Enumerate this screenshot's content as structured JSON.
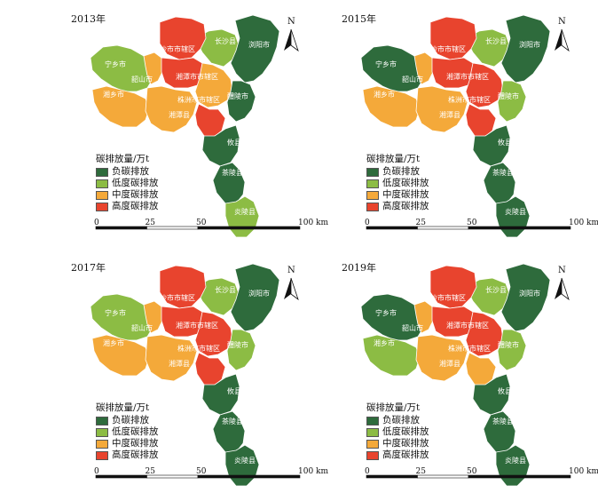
{
  "legend": {
    "title": "碳排放量/万t",
    "classes": [
      {
        "key": "neg",
        "label": "负碳排放",
        "color": "#2e6b3c"
      },
      {
        "key": "low",
        "label": "低度碳排放",
        "color": "#8cbc44"
      },
      {
        "key": "mid",
        "label": "中度碳排放",
        "color": "#f4a93a"
      },
      {
        "key": "high",
        "label": "高度碳排放",
        "color": "#e8442e"
      }
    ]
  },
  "scale": {
    "ticks": [
      "0",
      "25",
      "50",
      "100 km"
    ]
  },
  "north_label": "N",
  "region_names": {
    "changsha_xian": "长沙县",
    "liuyang": "浏阳市",
    "changsha_shi": "长沙市市辖区",
    "ningxiang": "宁乡市",
    "shaoshan": "韶山市",
    "xiangtan_shi": "湘潭市市辖区",
    "xiangxiang": "湘乡市",
    "xiangtan_xian": "湘潭县",
    "zhuzhou_shi": "株洲市市辖区",
    "liling": "醴陵市",
    "youxian": "攸县",
    "chaling": "茶陵县",
    "yanling": "炎陵县"
  },
  "panels": [
    {
      "year": "2013年",
      "classes": {
        "changsha_xian": "low",
        "liuyang": "neg",
        "changsha_shi": "high",
        "ningxiang": "low",
        "shaoshan": "mid",
        "xiangtan_shi": "high",
        "xiangxiang": "mid",
        "xiangtan_xian": "mid",
        "zhuzhou_shi": "mid",
        "liling": "neg",
        "zhuzhou_south": "high",
        "youxian": "neg",
        "chaling": "neg",
        "yanling": "low"
      }
    },
    {
      "year": "2015年",
      "classes": {
        "changsha_xian": "low",
        "liuyang": "neg",
        "changsha_shi": "high",
        "ningxiang": "neg",
        "shaoshan": "mid",
        "xiangtan_shi": "high",
        "xiangxiang": "mid",
        "xiangtan_xian": "mid",
        "zhuzhou_shi": "high",
        "liling": "low",
        "zhuzhou_south": "high",
        "youxian": "neg",
        "chaling": "neg",
        "yanling": "neg"
      }
    },
    {
      "year": "2017年",
      "classes": {
        "changsha_xian": "low",
        "liuyang": "neg",
        "changsha_shi": "high",
        "ningxiang": "low",
        "shaoshan": "mid",
        "xiangtan_shi": "high",
        "xiangxiang": "mid",
        "xiangtan_xian": "mid",
        "zhuzhou_shi": "high",
        "liling": "low",
        "zhuzhou_south": "high",
        "youxian": "neg",
        "chaling": "neg",
        "yanling": "neg"
      }
    },
    {
      "year": "2019年",
      "classes": {
        "changsha_xian": "low",
        "liuyang": "neg",
        "changsha_shi": "high",
        "ningxiang": "neg",
        "shaoshan": "mid",
        "xiangtan_shi": "high",
        "xiangxiang": "low",
        "xiangtan_xian": "mid",
        "zhuzhou_shi": "high",
        "liling": "low",
        "zhuzhou_south": "mid",
        "youxian": "neg",
        "chaling": "neg",
        "yanling": "neg"
      }
    }
  ]
}
